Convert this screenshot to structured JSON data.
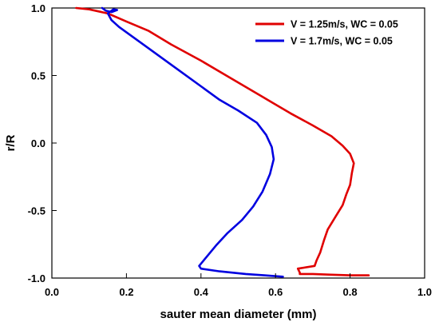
{
  "chart_data": {
    "type": "line",
    "xlabel": "sauter mean diameter (mm)",
    "ylabel": "r/R",
    "xlim": [
      0.0,
      1.0
    ],
    "ylim": [
      -1.0,
      1.0
    ],
    "xticks": [
      "0.0",
      "0.2",
      "0.4",
      "0.6",
      "0.8",
      "1.0"
    ],
    "yticks": [
      "1.0",
      "0.5",
      "0.0",
      "-0.5",
      "-1.0"
    ],
    "xtick_values": [
      0.0,
      0.2,
      0.4,
      0.6,
      0.8,
      1.0
    ],
    "ytick_values": [
      1.0,
      0.5,
      0.0,
      -0.5,
      -1.0
    ],
    "grid": false,
    "legend_position": "top-right",
    "series": [
      {
        "name": "V = 1.25m/s, WC = 0.05",
        "color": "#e00000",
        "points": [
          [
            0.065,
            1.0
          ],
          [
            0.1,
            0.99
          ],
          [
            0.15,
            0.96
          ],
          [
            0.2,
            0.9
          ],
          [
            0.26,
            0.83
          ],
          [
            0.32,
            0.73
          ],
          [
            0.4,
            0.61
          ],
          [
            0.48,
            0.48
          ],
          [
            0.56,
            0.35
          ],
          [
            0.64,
            0.22
          ],
          [
            0.7,
            0.13
          ],
          [
            0.75,
            0.05
          ],
          [
            0.78,
            -0.02
          ],
          [
            0.8,
            -0.08
          ],
          [
            0.81,
            -0.15
          ],
          [
            0.805,
            -0.22
          ],
          [
            0.8,
            -0.31
          ],
          [
            0.79,
            -0.38
          ],
          [
            0.78,
            -0.46
          ],
          [
            0.76,
            -0.55
          ],
          [
            0.74,
            -0.64
          ],
          [
            0.73,
            -0.72
          ],
          [
            0.72,
            -0.81
          ],
          [
            0.71,
            -0.87
          ],
          [
            0.705,
            -0.91
          ],
          [
            0.66,
            -0.93
          ],
          [
            0.665,
            -0.96
          ],
          [
            0.665,
            -0.97
          ],
          [
            0.7,
            -0.97
          ],
          [
            0.75,
            -0.975
          ],
          [
            0.8,
            -0.98
          ],
          [
            0.85,
            -0.98
          ]
        ]
      },
      {
        "name": "V = 1.7m/s, WC = 0.05",
        "color": "#0000e0",
        "points": [
          [
            0.135,
            1.0
          ],
          [
            0.145,
            0.98
          ],
          [
            0.16,
            0.97
          ],
          [
            0.175,
            0.985
          ],
          [
            0.165,
            0.99
          ],
          [
            0.15,
            0.96
          ],
          [
            0.16,
            0.91
          ],
          [
            0.18,
            0.86
          ],
          [
            0.21,
            0.8
          ],
          [
            0.25,
            0.72
          ],
          [
            0.3,
            0.62
          ],
          [
            0.35,
            0.52
          ],
          [
            0.4,
            0.42
          ],
          [
            0.45,
            0.32
          ],
          [
            0.5,
            0.24
          ],
          [
            0.55,
            0.15
          ],
          [
            0.575,
            0.06
          ],
          [
            0.59,
            -0.03
          ],
          [
            0.595,
            -0.12
          ],
          [
            0.585,
            -0.23
          ],
          [
            0.565,
            -0.36
          ],
          [
            0.54,
            -0.47
          ],
          [
            0.51,
            -0.57
          ],
          [
            0.47,
            -0.67
          ],
          [
            0.44,
            -0.76
          ],
          [
            0.41,
            -0.86
          ],
          [
            0.395,
            -0.91
          ],
          [
            0.4,
            -0.93
          ],
          [
            0.45,
            -0.95
          ],
          [
            0.52,
            -0.97
          ],
          [
            0.57,
            -0.98
          ],
          [
            0.62,
            -0.99
          ]
        ]
      }
    ]
  }
}
